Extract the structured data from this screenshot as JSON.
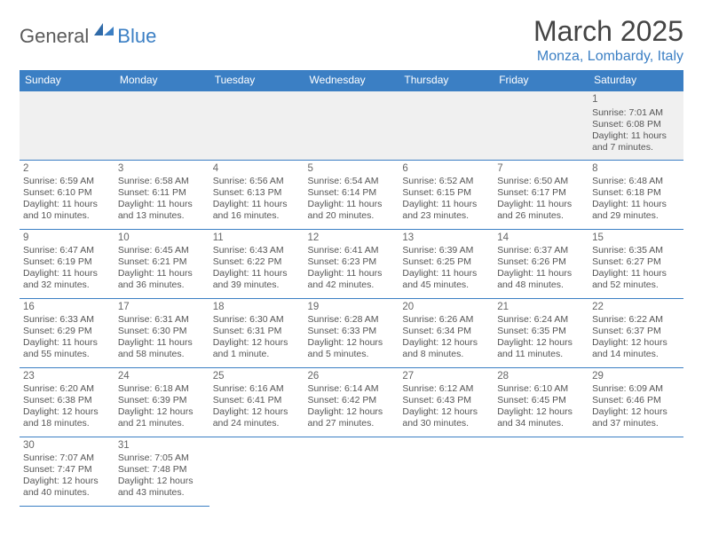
{
  "brand": {
    "name1": "General",
    "name2": "Blue"
  },
  "title": "March 2025",
  "location": "Monza, Lombardy, Italy",
  "colors": {
    "accent": "#3b7fc4",
    "header_bg": "#3b7fc4",
    "header_fg": "#ffffff",
    "text": "#555555",
    "daynum": "#666666",
    "row_stripe": "#f0f0f0",
    "page_bg": "#ffffff"
  },
  "typography": {
    "title_fontsize_pt": 24,
    "location_fontsize_pt": 12,
    "header_fontsize_pt": 9,
    "cell_fontsize_pt": 8
  },
  "dayHeaders": [
    "Sunday",
    "Monday",
    "Tuesday",
    "Wednesday",
    "Thursday",
    "Friday",
    "Saturday"
  ],
  "weeks": [
    [
      null,
      null,
      null,
      null,
      null,
      null,
      {
        "d": "1",
        "sr": "Sunrise: 7:01 AM",
        "ss": "Sunset: 6:08 PM",
        "dl1": "Daylight: 11 hours",
        "dl2": "and 7 minutes."
      }
    ],
    [
      {
        "d": "2",
        "sr": "Sunrise: 6:59 AM",
        "ss": "Sunset: 6:10 PM",
        "dl1": "Daylight: 11 hours",
        "dl2": "and 10 minutes."
      },
      {
        "d": "3",
        "sr": "Sunrise: 6:58 AM",
        "ss": "Sunset: 6:11 PM",
        "dl1": "Daylight: 11 hours",
        "dl2": "and 13 minutes."
      },
      {
        "d": "4",
        "sr": "Sunrise: 6:56 AM",
        "ss": "Sunset: 6:13 PM",
        "dl1": "Daylight: 11 hours",
        "dl2": "and 16 minutes."
      },
      {
        "d": "5",
        "sr": "Sunrise: 6:54 AM",
        "ss": "Sunset: 6:14 PM",
        "dl1": "Daylight: 11 hours",
        "dl2": "and 20 minutes."
      },
      {
        "d": "6",
        "sr": "Sunrise: 6:52 AM",
        "ss": "Sunset: 6:15 PM",
        "dl1": "Daylight: 11 hours",
        "dl2": "and 23 minutes."
      },
      {
        "d": "7",
        "sr": "Sunrise: 6:50 AM",
        "ss": "Sunset: 6:17 PM",
        "dl1": "Daylight: 11 hours",
        "dl2": "and 26 minutes."
      },
      {
        "d": "8",
        "sr": "Sunrise: 6:48 AM",
        "ss": "Sunset: 6:18 PM",
        "dl1": "Daylight: 11 hours",
        "dl2": "and 29 minutes."
      }
    ],
    [
      {
        "d": "9",
        "sr": "Sunrise: 6:47 AM",
        "ss": "Sunset: 6:19 PM",
        "dl1": "Daylight: 11 hours",
        "dl2": "and 32 minutes."
      },
      {
        "d": "10",
        "sr": "Sunrise: 6:45 AM",
        "ss": "Sunset: 6:21 PM",
        "dl1": "Daylight: 11 hours",
        "dl2": "and 36 minutes."
      },
      {
        "d": "11",
        "sr": "Sunrise: 6:43 AM",
        "ss": "Sunset: 6:22 PM",
        "dl1": "Daylight: 11 hours",
        "dl2": "and 39 minutes."
      },
      {
        "d": "12",
        "sr": "Sunrise: 6:41 AM",
        "ss": "Sunset: 6:23 PM",
        "dl1": "Daylight: 11 hours",
        "dl2": "and 42 minutes."
      },
      {
        "d": "13",
        "sr": "Sunrise: 6:39 AM",
        "ss": "Sunset: 6:25 PM",
        "dl1": "Daylight: 11 hours",
        "dl2": "and 45 minutes."
      },
      {
        "d": "14",
        "sr": "Sunrise: 6:37 AM",
        "ss": "Sunset: 6:26 PM",
        "dl1": "Daylight: 11 hours",
        "dl2": "and 48 minutes."
      },
      {
        "d": "15",
        "sr": "Sunrise: 6:35 AM",
        "ss": "Sunset: 6:27 PM",
        "dl1": "Daylight: 11 hours",
        "dl2": "and 52 minutes."
      }
    ],
    [
      {
        "d": "16",
        "sr": "Sunrise: 6:33 AM",
        "ss": "Sunset: 6:29 PM",
        "dl1": "Daylight: 11 hours",
        "dl2": "and 55 minutes."
      },
      {
        "d": "17",
        "sr": "Sunrise: 6:31 AM",
        "ss": "Sunset: 6:30 PM",
        "dl1": "Daylight: 11 hours",
        "dl2": "and 58 minutes."
      },
      {
        "d": "18",
        "sr": "Sunrise: 6:30 AM",
        "ss": "Sunset: 6:31 PM",
        "dl1": "Daylight: 12 hours",
        "dl2": "and 1 minute."
      },
      {
        "d": "19",
        "sr": "Sunrise: 6:28 AM",
        "ss": "Sunset: 6:33 PM",
        "dl1": "Daylight: 12 hours",
        "dl2": "and 5 minutes."
      },
      {
        "d": "20",
        "sr": "Sunrise: 6:26 AM",
        "ss": "Sunset: 6:34 PM",
        "dl1": "Daylight: 12 hours",
        "dl2": "and 8 minutes."
      },
      {
        "d": "21",
        "sr": "Sunrise: 6:24 AM",
        "ss": "Sunset: 6:35 PM",
        "dl1": "Daylight: 12 hours",
        "dl2": "and 11 minutes."
      },
      {
        "d": "22",
        "sr": "Sunrise: 6:22 AM",
        "ss": "Sunset: 6:37 PM",
        "dl1": "Daylight: 12 hours",
        "dl2": "and 14 minutes."
      }
    ],
    [
      {
        "d": "23",
        "sr": "Sunrise: 6:20 AM",
        "ss": "Sunset: 6:38 PM",
        "dl1": "Daylight: 12 hours",
        "dl2": "and 18 minutes."
      },
      {
        "d": "24",
        "sr": "Sunrise: 6:18 AM",
        "ss": "Sunset: 6:39 PM",
        "dl1": "Daylight: 12 hours",
        "dl2": "and 21 minutes."
      },
      {
        "d": "25",
        "sr": "Sunrise: 6:16 AM",
        "ss": "Sunset: 6:41 PM",
        "dl1": "Daylight: 12 hours",
        "dl2": "and 24 minutes."
      },
      {
        "d": "26",
        "sr": "Sunrise: 6:14 AM",
        "ss": "Sunset: 6:42 PM",
        "dl1": "Daylight: 12 hours",
        "dl2": "and 27 minutes."
      },
      {
        "d": "27",
        "sr": "Sunrise: 6:12 AM",
        "ss": "Sunset: 6:43 PM",
        "dl1": "Daylight: 12 hours",
        "dl2": "and 30 minutes."
      },
      {
        "d": "28",
        "sr": "Sunrise: 6:10 AM",
        "ss": "Sunset: 6:45 PM",
        "dl1": "Daylight: 12 hours",
        "dl2": "and 34 minutes."
      },
      {
        "d": "29",
        "sr": "Sunrise: 6:09 AM",
        "ss": "Sunset: 6:46 PM",
        "dl1": "Daylight: 12 hours",
        "dl2": "and 37 minutes."
      }
    ],
    [
      {
        "d": "30",
        "sr": "Sunrise: 7:07 AM",
        "ss": "Sunset: 7:47 PM",
        "dl1": "Daylight: 12 hours",
        "dl2": "and 40 minutes."
      },
      {
        "d": "31",
        "sr": "Sunrise: 7:05 AM",
        "ss": "Sunset: 7:48 PM",
        "dl1": "Daylight: 12 hours",
        "dl2": "and 43 minutes."
      },
      null,
      null,
      null,
      null,
      null
    ]
  ]
}
